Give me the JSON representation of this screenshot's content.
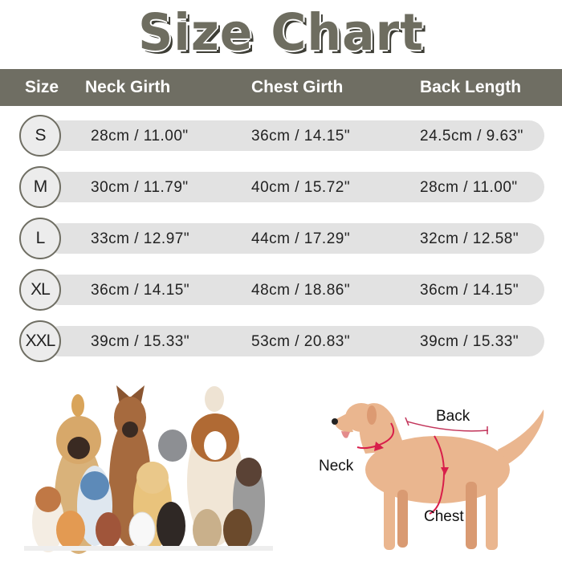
{
  "title": "Size Chart",
  "colors": {
    "header_bg": "#6f6e63",
    "row_bg": "#e2e2e2",
    "measure_line": "#d81e4a",
    "dog_fill": "#eab68f"
  },
  "table": {
    "headers": [
      "Size",
      "Neck Girth",
      "Chest Girth",
      "Back Length"
    ],
    "rows": [
      {
        "size": "S",
        "neck": "28cm / 11.00\"",
        "chest": "36cm / 14.15\"",
        "back": "24.5cm / 9.63\""
      },
      {
        "size": "M",
        "neck": "30cm / 11.79\"",
        "chest": "40cm / 15.72\"",
        "back": "28cm / 11.00\""
      },
      {
        "size": "L",
        "neck": "33cm / 12.97\"",
        "chest": "44cm / 17.29\"",
        "back": "32cm / 12.58\""
      },
      {
        "size": "XL",
        "neck": "36cm / 14.15\"",
        "chest": "48cm / 18.86\"",
        "back": "36cm / 14.15\""
      },
      {
        "size": "XXL",
        "neck": "39cm / 15.33\"",
        "chest": "53cm / 20.83\"",
        "back": "39cm / 15.33\""
      }
    ]
  },
  "diagram": {
    "back_label": "Back",
    "neck_label": "Neck",
    "chest_label": "Chest"
  }
}
